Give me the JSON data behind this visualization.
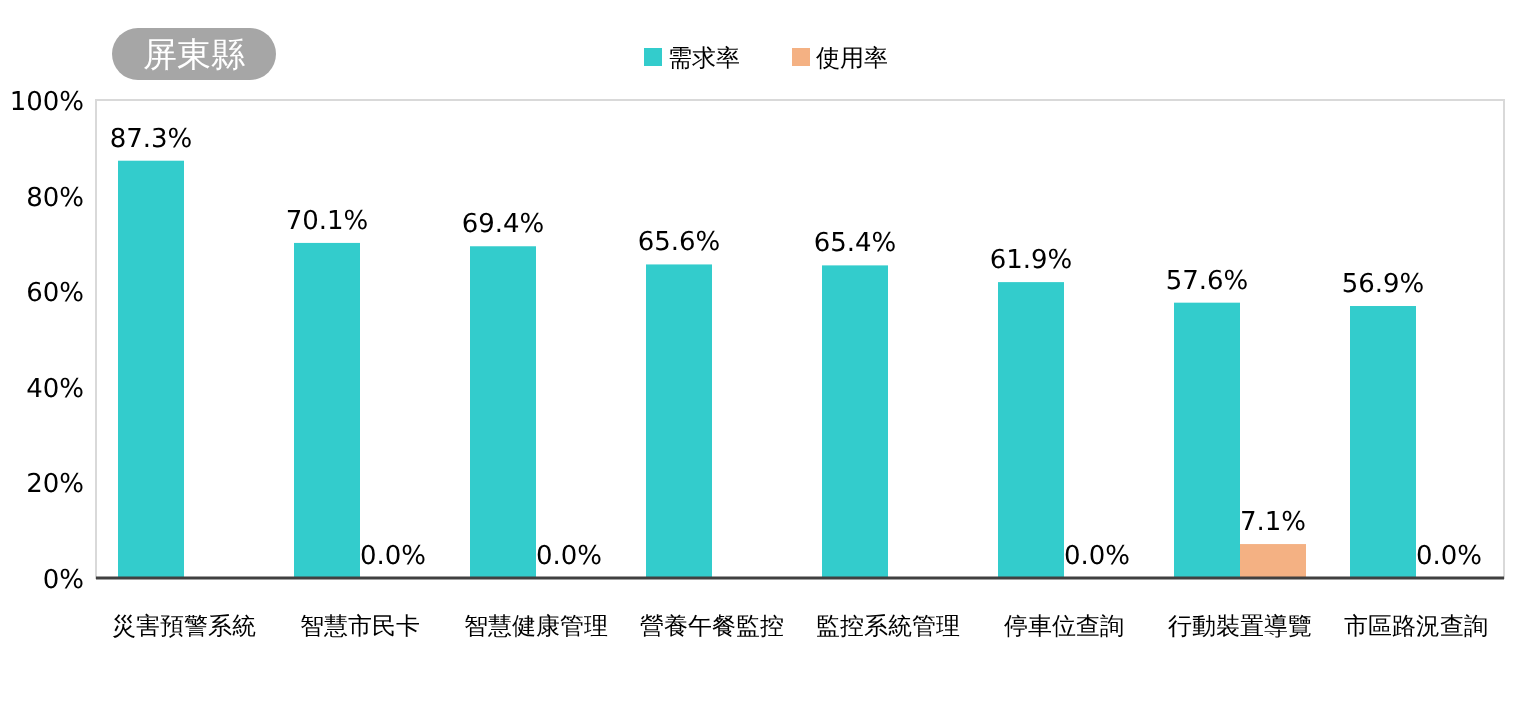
{
  "chart_data": {
    "type": "bar",
    "title": "屏東縣",
    "categories": [
      "災害預警系統",
      "智慧市民卡",
      "智慧健康管理",
      "營養午餐監控",
      "監控系統管理",
      "停車位查詢",
      "行動裝置導覽",
      "市區路況查詢"
    ],
    "series": [
      {
        "name": "需求率",
        "color": "#33cccc",
        "values": [
          87.3,
          70.1,
          69.4,
          65.6,
          65.4,
          61.9,
          57.6,
          56.9
        ],
        "value_labels": [
          "87.3%",
          "70.1%",
          "69.4%",
          "65.6%",
          "65.4%",
          "61.9%",
          "57.6%",
          "56.9%"
        ]
      },
      {
        "name": "使用率",
        "color": "#f4b183",
        "values": [
          null,
          0.0,
          0.0,
          null,
          null,
          0.0,
          7.1,
          0.0
        ],
        "value_labels": [
          null,
          "0.0%",
          "0.0%",
          null,
          null,
          "0.0%",
          "7.1%",
          "0.0%"
        ]
      }
    ],
    "ylim": [
      0,
      100
    ],
    "yticks": [
      {
        "value": 0,
        "label": "0%"
      },
      {
        "value": 20,
        "label": "20%"
      },
      {
        "value": 40,
        "label": "40%"
      },
      {
        "value": 60,
        "label": "60%"
      },
      {
        "value": 80,
        "label": "80%"
      },
      {
        "value": 100,
        "label": "100%"
      }
    ],
    "grid": false,
    "legend": "top"
  }
}
